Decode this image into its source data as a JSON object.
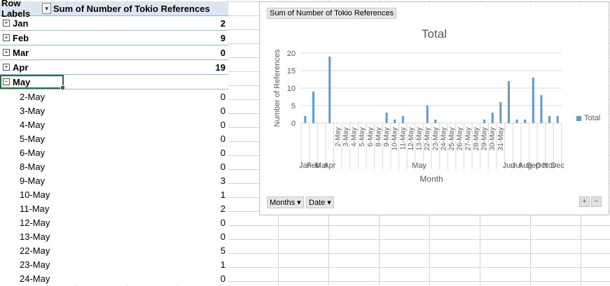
{
  "pivot": {
    "header_row_labels": "Row Labels",
    "header_sum": "Sum of Number of Tokio References",
    "months": [
      {
        "label": "Jan",
        "value": "2",
        "symbol": "⊞"
      },
      {
        "label": "Feb",
        "value": "9",
        "symbol": "⊞"
      },
      {
        "label": "Mar",
        "value": "0",
        "symbol": "⊞"
      },
      {
        "label": "Apr",
        "value": "19",
        "symbol": "⊞"
      },
      {
        "label": "May",
        "value": "",
        "symbol": "⊟"
      }
    ],
    "may_days": [
      {
        "label": "2-May",
        "value": "0"
      },
      {
        "label": "3-May",
        "value": "0"
      },
      {
        "label": "4-May",
        "value": "0"
      },
      {
        "label": "5-May",
        "value": "0"
      },
      {
        "label": "6-May",
        "value": "0"
      },
      {
        "label": "8-May",
        "value": "0"
      },
      {
        "label": "9-May",
        "value": "3"
      },
      {
        "label": "10-May",
        "value": "1"
      },
      {
        "label": "11-May",
        "value": "2"
      },
      {
        "label": "12-May",
        "value": "0"
      },
      {
        "label": "13-May",
        "value": "0"
      },
      {
        "label": "22-May",
        "value": "5"
      },
      {
        "label": "23-May",
        "value": "1"
      },
      {
        "label": "24-May",
        "value": "0"
      }
    ]
  },
  "chart": {
    "field_button": "Sum of Number of Tokio References",
    "axis_buttons": [
      {
        "label": "Months ▾"
      },
      {
        "label": "Date ▾"
      }
    ],
    "zoom_in": "+",
    "zoom_out": "−"
  },
  "chart_data": {
    "type": "bar",
    "title": "Total",
    "xlabel": "Month",
    "ylabel": "Number of References",
    "ylim": [
      0,
      20
    ],
    "yticks": [
      0,
      5,
      10,
      15,
      20
    ],
    "legend": "right",
    "color": "#5b9bd5",
    "series": [
      {
        "name": "Total",
        "values": [
          2,
          9,
          0,
          19,
          0,
          0,
          0,
          0,
          0,
          0,
          3,
          1,
          2,
          0,
          0,
          5,
          1,
          0,
          0,
          0,
          0,
          0,
          1,
          3,
          6,
          12,
          1,
          1,
          13,
          8,
          2,
          2
        ]
      }
    ],
    "categories": [
      "Jan",
      "Feb",
      "Mar",
      "Apr",
      "2-May",
      "3-May",
      "4-May",
      "5-May",
      "6-May",
      "8-May",
      "9-May",
      "10-May",
      "11-May",
      "12-May",
      "13-May",
      "22-May",
      "23-May",
      "24-May",
      "25-May",
      "26-May",
      "27-May",
      "28-May",
      "29-May",
      "30-May",
      "31-May",
      "Jun",
      "Jul",
      "Aug",
      "Sep",
      "Oct",
      "Nov",
      "Dec"
    ],
    "group_labels": [
      "Jan",
      "Feb",
      "Mar",
      "Apr",
      "May",
      "Jun",
      "Jul",
      "Aug",
      "Sep",
      "Oct",
      "Nov",
      "Dec"
    ]
  }
}
